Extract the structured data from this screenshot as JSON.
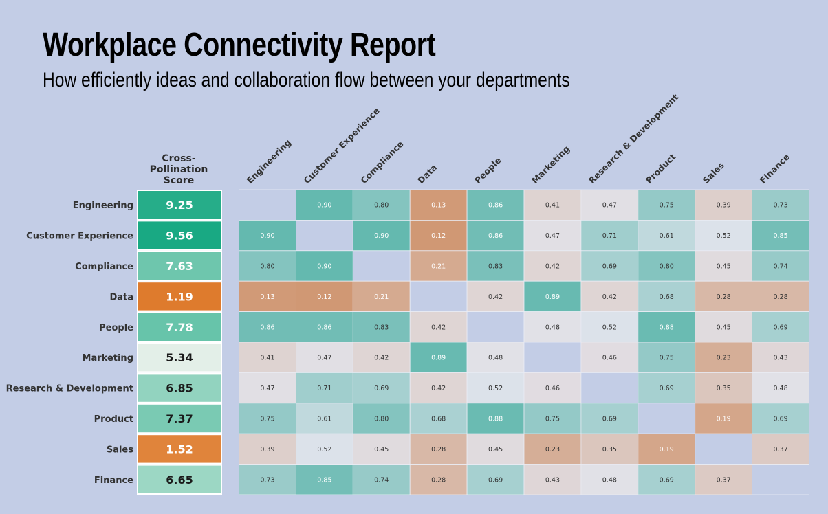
{
  "title": "Workplace Connectivity Report",
  "subtitle": "How efficiently ideas and collaboration flow between your departments",
  "chart_data": {
    "type": "heatmap",
    "score_header": [
      "Cross-",
      "Pollination",
      "Score"
    ],
    "departments": [
      "Engineering",
      "Customer Experience",
      "Compliance",
      "Data",
      "People",
      "Marketing",
      "Research & Development",
      "Product",
      "Sales",
      "Finance"
    ],
    "scores": [
      9.25,
      9.56,
      7.63,
      1.19,
      7.78,
      5.34,
      6.85,
      7.37,
      1.52,
      6.65
    ],
    "matrix": [
      [
        null,
        0.9,
        0.8,
        0.13,
        0.86,
        0.41,
        0.47,
        0.75,
        0.39,
        0.73
      ],
      [
        0.9,
        null,
        0.9,
        0.12,
        0.86,
        0.47,
        0.71,
        0.61,
        0.52,
        0.85
      ],
      [
        0.8,
        0.9,
        null,
        0.21,
        0.83,
        0.42,
        0.69,
        0.8,
        0.45,
        0.74
      ],
      [
        0.13,
        0.12,
        0.21,
        null,
        0.42,
        0.89,
        0.42,
        0.68,
        0.28,
        0.28
      ],
      [
        0.86,
        0.86,
        0.83,
        0.42,
        null,
        0.48,
        0.52,
        0.88,
        0.45,
        0.69
      ],
      [
        0.41,
        0.47,
        0.42,
        0.89,
        0.48,
        null,
        0.46,
        0.75,
        0.23,
        0.43
      ],
      [
        0.47,
        0.71,
        0.69,
        0.42,
        0.52,
        0.46,
        null,
        0.69,
        0.35,
        0.48
      ],
      [
        0.75,
        0.61,
        0.8,
        0.68,
        0.88,
        0.75,
        0.69,
        null,
        0.19,
        0.69
      ],
      [
        0.39,
        0.52,
        0.45,
        0.28,
        0.45,
        0.23,
        0.35,
        0.19,
        null,
        0.37
      ],
      [
        0.73,
        0.85,
        0.74,
        0.28,
        0.69,
        0.43,
        0.48,
        0.69,
        0.37,
        null
      ]
    ],
    "colors": {
      "background": "#c3cde6",
      "high": "#17a882",
      "low": "#d9650a",
      "mid": "#fcf8f4"
    }
  }
}
